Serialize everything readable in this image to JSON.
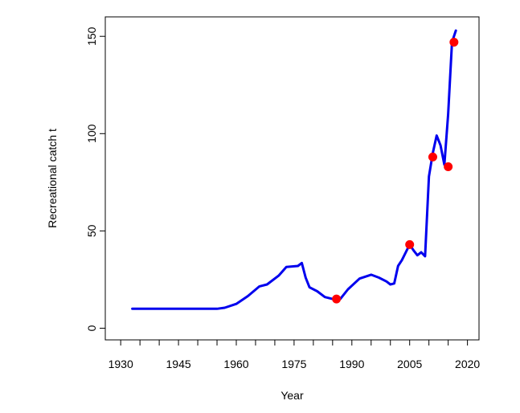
{
  "chart_data": {
    "type": "line",
    "xlabel": "Year",
    "ylabel": "Recreational catch t",
    "xlim": [
      1926,
      2023
    ],
    "ylim": [
      -6,
      160
    ],
    "x_ticks": [
      1930,
      1945,
      1960,
      1975,
      1990,
      2005,
      2020
    ],
    "x_minor_ticks": [
      1935,
      1940,
      1950,
      1955,
      1965,
      1970,
      1980,
      1985,
      1995,
      2000,
      2010,
      2015
    ],
    "y_ticks": [
      0,
      50,
      100,
      150
    ],
    "grid": false,
    "line_color": "#0000ee",
    "point_color": "#ff0000",
    "series": [
      {
        "x": [
          1933,
          1940,
          1950,
          1955,
          1957,
          1960,
          1963,
          1966,
          1968,
          1971,
          1973,
          1976,
          1977,
          1978,
          1979,
          1981,
          1983,
          1985,
          1987,
          1989,
          1992,
          1995,
          1997,
          1999,
          2000,
          2001,
          2002,
          2003,
          2004,
          2005,
          2006,
          2007,
          2008,
          2009,
          2010,
          2011,
          2012,
          2013,
          2014,
          2015,
          2016,
          2017
        ],
        "y": [
          10,
          10,
          10,
          10,
          10.5,
          12.5,
          16.5,
          21.5,
          22.5,
          27,
          31.5,
          32,
          33.5,
          26,
          21,
          19,
          16,
          15,
          15,
          20,
          25.5,
          27.5,
          26,
          24,
          22.5,
          23,
          32,
          35,
          39,
          43,
          40,
          37.5,
          39,
          37,
          78,
          90,
          99,
          94,
          84,
          110,
          147,
          153
        ]
      }
    ],
    "points": {
      "x": [
        1986,
        2005,
        2011,
        2015,
        2016.5
      ],
      "y": [
        15,
        43,
        88,
        83,
        147
      ]
    }
  }
}
